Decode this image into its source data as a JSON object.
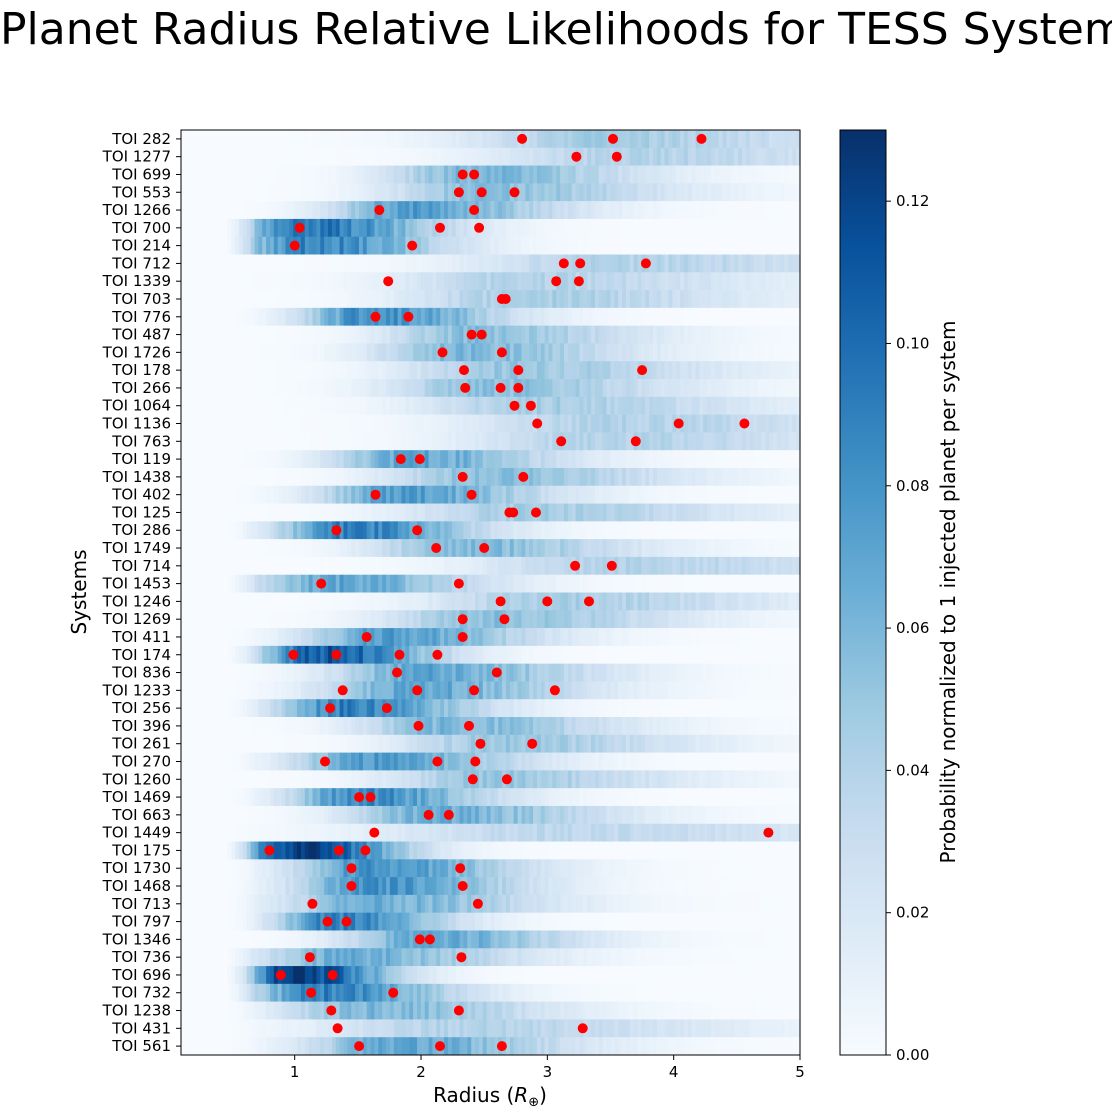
{
  "chart_data": {
    "type": "heatmap",
    "title": "Planet Radius Relative Likelihoods for TESS Systems",
    "xlabel": "Radius",
    "xlabel_symbol": "R",
    "xlabel_subscript": "⊕",
    "ylabel": "Systems",
    "xlim": [
      0.1,
      5
    ],
    "xticks": [
      1,
      2,
      3,
      4,
      5
    ],
    "colorbar": {
      "label": "Probability normalized to 1 injected planet per system",
      "range": [
        0,
        0.13
      ],
      "ticks": [
        "0.00",
        "0.02",
        "0.04",
        "0.06",
        "0.08",
        "0.10",
        "0.12"
      ],
      "colormap": "Blues",
      "color_low": "#f7fbff",
      "color_high": "#08306b"
    },
    "marker_color": "#ff0000",
    "systems": [
      {
        "name": "TOI 282",
        "planets": [
          2.8,
          3.52,
          4.22
        ],
        "peak": 0.045,
        "center": 3.4,
        "width": 1.4
      },
      {
        "name": "TOI 1277",
        "planets": [
          3.23,
          3.55
        ],
        "peak": 0.04,
        "center": 3.6,
        "width": 1.4
      },
      {
        "name": "TOI 699",
        "planets": [
          2.33,
          2.42
        ],
        "peak": 0.06,
        "center": 2.4,
        "width": 0.9
      },
      {
        "name": "TOI 553",
        "planets": [
          2.3,
          2.48,
          2.74
        ],
        "peak": 0.055,
        "center": 2.5,
        "width": 1.0
      },
      {
        "name": "TOI 1266",
        "planets": [
          1.67,
          2.42
        ],
        "peak": 0.075,
        "center": 1.9,
        "width": 0.8
      },
      {
        "name": "TOI 700",
        "planets": [
          1.04,
          2.15,
          2.46
        ],
        "peak": 0.095,
        "center": 1.1,
        "width": 0.7
      },
      {
        "name": "TOI 214",
        "planets": [
          1.0,
          1.93
        ],
        "peak": 0.09,
        "center": 1.1,
        "width": 0.7
      },
      {
        "name": "TOI 712",
        "planets": [
          3.13,
          3.26,
          3.78
        ],
        "peak": 0.04,
        "center": 3.5,
        "width": 1.5
      },
      {
        "name": "TOI 1339",
        "planets": [
          1.74,
          3.07,
          3.25
        ],
        "peak": 0.04,
        "center": 2.8,
        "width": 1.3
      },
      {
        "name": "TOI 703",
        "planets": [
          2.64,
          2.67
        ],
        "peak": 0.045,
        "center": 2.8,
        "width": 1.2
      },
      {
        "name": "TOI 776",
        "planets": [
          1.64,
          1.9
        ],
        "peak": 0.085,
        "center": 1.6,
        "width": 0.7
      },
      {
        "name": "TOI 487",
        "planets": [
          2.4,
          2.48
        ],
        "peak": 0.055,
        "center": 2.4,
        "width": 0.9
      },
      {
        "name": "TOI 1726",
        "planets": [
          2.17,
          2.64
        ],
        "peak": 0.06,
        "center": 2.3,
        "width": 0.9
      },
      {
        "name": "TOI 178",
        "planets": [
          2.34,
          2.77,
          3.75
        ],
        "peak": 0.05,
        "center": 2.7,
        "width": 1.1
      },
      {
        "name": "TOI 266",
        "planets": [
          2.35,
          2.63,
          2.77
        ],
        "peak": 0.055,
        "center": 2.5,
        "width": 1.0
      },
      {
        "name": "TOI 1064",
        "planets": [
          2.74,
          2.87
        ],
        "peak": 0.045,
        "center": 2.9,
        "width": 1.2
      },
      {
        "name": "TOI 1136",
        "planets": [
          2.92,
          4.04,
          4.56
        ],
        "peak": 0.04,
        "center": 3.5,
        "width": 1.5
      },
      {
        "name": "TOI 763",
        "planets": [
          3.11,
          3.7
        ],
        "peak": 0.04,
        "center": 3.4,
        "width": 1.4
      },
      {
        "name": "TOI 119",
        "planets": [
          1.84,
          1.99
        ],
        "peak": 0.07,
        "center": 1.9,
        "width": 0.8
      },
      {
        "name": "TOI 1438",
        "planets": [
          2.33,
          2.81
        ],
        "peak": 0.055,
        "center": 2.5,
        "width": 1.0
      },
      {
        "name": "TOI 402",
        "planets": [
          1.64,
          2.4
        ],
        "peak": 0.075,
        "center": 1.8,
        "width": 0.8
      },
      {
        "name": "TOI 125",
        "planets": [
          2.7,
          2.73,
          2.91
        ],
        "peak": 0.045,
        "center": 2.8,
        "width": 1.2
      },
      {
        "name": "TOI 286",
        "planets": [
          1.33,
          1.97
        ],
        "peak": 0.09,
        "center": 1.4,
        "width": 0.7
      },
      {
        "name": "TOI 1749",
        "planets": [
          2.12,
          2.5
        ],
        "peak": 0.06,
        "center": 2.3,
        "width": 0.9
      },
      {
        "name": "TOI 714",
        "planets": [
          3.22,
          3.51
        ],
        "peak": 0.04,
        "center": 3.5,
        "width": 1.4
      },
      {
        "name": "TOI 1453",
        "planets": [
          1.21,
          2.3
        ],
        "peak": 0.07,
        "center": 1.3,
        "width": 0.8
      },
      {
        "name": "TOI 1246",
        "planets": [
          2.63,
          3.0,
          3.33
        ],
        "peak": 0.045,
        "center": 3.0,
        "width": 1.2
      },
      {
        "name": "TOI 1269",
        "planets": [
          2.33,
          2.66
        ],
        "peak": 0.055,
        "center": 2.5,
        "width": 1.0
      },
      {
        "name": "TOI 411",
        "planets": [
          1.57,
          2.33
        ],
        "peak": 0.075,
        "center": 1.7,
        "width": 0.8
      },
      {
        "name": "TOI 174",
        "planets": [
          0.99,
          1.33,
          1.83,
          2.13
        ],
        "peak": 0.11,
        "center": 1.2,
        "width": 0.6
      },
      {
        "name": "TOI 836",
        "planets": [
          1.81,
          2.6
        ],
        "peak": 0.07,
        "center": 2.0,
        "width": 0.9
      },
      {
        "name": "TOI 1233",
        "planets": [
          1.38,
          1.97,
          2.42,
          3.06
        ],
        "peak": 0.07,
        "center": 1.9,
        "width": 0.9
      },
      {
        "name": "TOI 256",
        "planets": [
          1.28,
          1.73
        ],
        "peak": 0.09,
        "center": 1.4,
        "width": 0.7
      },
      {
        "name": "TOI 396",
        "planets": [
          1.98,
          2.38
        ],
        "peak": 0.06,
        "center": 2.2,
        "width": 0.9
      },
      {
        "name": "TOI 261",
        "planets": [
          2.47,
          2.88
        ],
        "peak": 0.05,
        "center": 2.6,
        "width": 1.0
      },
      {
        "name": "TOI 270",
        "planets": [
          1.24,
          2.13,
          2.43
        ],
        "peak": 0.075,
        "center": 1.6,
        "width": 0.8
      },
      {
        "name": "TOI 1260",
        "planets": [
          2.41,
          2.68
        ],
        "peak": 0.05,
        "center": 2.5,
        "width": 1.0
      },
      {
        "name": "TOI 1469",
        "planets": [
          1.51,
          1.6
        ],
        "peak": 0.085,
        "center": 1.5,
        "width": 0.7
      },
      {
        "name": "TOI 663",
        "planets": [
          2.06,
          2.22
        ],
        "peak": 0.065,
        "center": 2.1,
        "width": 0.9
      },
      {
        "name": "TOI 1449",
        "planets": [
          1.63,
          4.75
        ],
        "peak": 0.035,
        "center": 3.0,
        "width": 1.8
      },
      {
        "name": "TOI 175",
        "planets": [
          0.8,
          1.35,
          1.56
        ],
        "peak": 0.125,
        "center": 1.0,
        "width": 0.55
      },
      {
        "name": "TOI 1730",
        "planets": [
          1.45,
          2.31
        ],
        "peak": 0.08,
        "center": 1.6,
        "width": 0.8
      },
      {
        "name": "TOI 1468",
        "planets": [
          1.45,
          2.33
        ],
        "peak": 0.08,
        "center": 1.6,
        "width": 0.8
      },
      {
        "name": "TOI 713",
        "planets": [
          1.14,
          2.45
        ],
        "peak": 0.065,
        "center": 1.6,
        "width": 0.9
      },
      {
        "name": "TOI 797",
        "planets": [
          1.26,
          1.41
        ],
        "peak": 0.09,
        "center": 1.3,
        "width": 0.6
      },
      {
        "name": "TOI 1346",
        "planets": [
          1.99,
          2.07
        ],
        "peak": 0.07,
        "center": 2.0,
        "width": 0.8
      },
      {
        "name": "TOI 736",
        "planets": [
          1.12,
          2.32
        ],
        "peak": 0.065,
        "center": 1.4,
        "width": 0.9
      },
      {
        "name": "TOI 696",
        "planets": [
          0.89,
          1.3
        ],
        "peak": 0.125,
        "center": 1.0,
        "width": 0.5
      },
      {
        "name": "TOI 732",
        "planets": [
          1.13,
          1.78
        ],
        "peak": 0.09,
        "center": 1.2,
        "width": 0.7
      },
      {
        "name": "TOI 1238",
        "planets": [
          1.29,
          2.3
        ],
        "peak": 0.06,
        "center": 1.6,
        "width": 0.9
      },
      {
        "name": "TOI 431",
        "planets": [
          1.34,
          3.28
        ],
        "peak": 0.04,
        "center": 2.3,
        "width": 1.4
      },
      {
        "name": "TOI 561",
        "planets": [
          1.51,
          2.15,
          2.64
        ],
        "peak": 0.07,
        "center": 1.8,
        "width": 0.9
      }
    ]
  }
}
